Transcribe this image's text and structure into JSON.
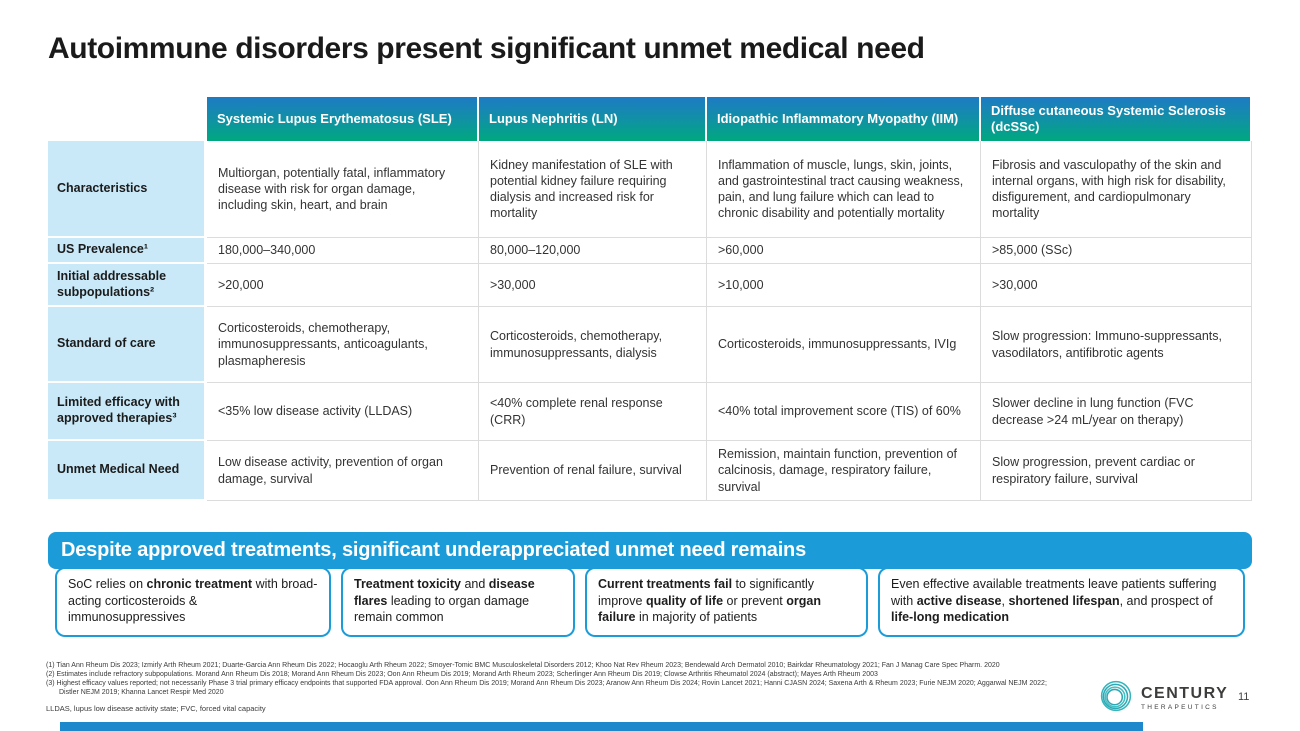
{
  "title": "Autoimmune disorders present significant unmet medical need",
  "table": {
    "columns": [
      "Systemic Lupus Erythematosus (SLE)",
      "Lupus Nephritis (LN)",
      "Idiopathic Inflammatory Myopathy (IIM)",
      "Diffuse cutaneous Systemic Sclerosis (dcSSc)"
    ],
    "rows": [
      {
        "label": "Characteristics",
        "cells": [
          "Multiorgan, potentially fatal, inflammatory disease with risk for organ damage, including skin, heart, and brain",
          "Kidney manifestation of SLE with potential kidney failure requiring dialysis and increased risk for mortality",
          "Inflammation of muscle, lungs, skin, joints, and gastrointestinal tract causing weakness, pain, and lung failure which can lead to chronic disability and potentially mortality",
          "Fibrosis and vasculopathy of the skin and internal organs, with high risk for disability, disfigurement, and cardiopulmonary mortality"
        ]
      },
      {
        "label": "US Prevalence¹",
        "cells": [
          "180,000–340,000",
          "80,000–120,000",
          ">60,000",
          ">85,000 (SSc)"
        ]
      },
      {
        "label": "Initial addressable subpopulations²",
        "cells": [
          ">20,000",
          ">30,000",
          ">10,000",
          ">30,000"
        ]
      },
      {
        "label": "Standard of care",
        "cells": [
          "Corticosteroids, chemotherapy, immunosuppressants, anticoagulants, plasmapheresis",
          "Corticosteroids, chemotherapy, immunosuppressants, dialysis",
          "Corticosteroids, immunosuppressants, IVIg",
          "Slow progression: Immuno-suppressants, vasodilators, antifibrotic agents"
        ]
      },
      {
        "label": "Limited efficacy with approved therapies³",
        "cells": [
          "<35% low disease activity (LLDAS)",
          "<40% complete renal response (CRR)",
          "<40% total improvement score (TIS) of 60%",
          "Slower decline in lung function (FVC decrease >24 mL/year on therapy)"
        ]
      },
      {
        "label": "Unmet Medical Need",
        "cells": [
          "Low disease activity, prevention of organ damage, survival",
          "Prevention of renal failure, survival",
          "Remission, maintain function, prevention of calcinosis, damage, respiratory failure, survival",
          "Slow progression, prevent cardiac or respiratory failure, survival"
        ]
      }
    ]
  },
  "banner": "Despite approved treatments, significant underappreciated unmet need remains",
  "callouts": [
    {
      "segments": [
        {
          "t": "SoC relies on ",
          "b": false
        },
        {
          "t": "chronic treatment",
          "b": true
        },
        {
          "t": " with broad-acting corticosteroids & immunosuppressives",
          "b": false
        }
      ]
    },
    {
      "segments": [
        {
          "t": "Treatment toxicity",
          "b": true
        },
        {
          "t": " and ",
          "b": false
        },
        {
          "t": "disease flares",
          "b": true
        },
        {
          "t": " leading to organ damage remain common",
          "b": false
        }
      ]
    },
    {
      "segments": [
        {
          "t": "Current treatments fail",
          "b": true
        },
        {
          "t": " to significantly improve ",
          "b": false
        },
        {
          "t": "quality of life",
          "b": true
        },
        {
          "t": " or prevent ",
          "b": false
        },
        {
          "t": "organ failure",
          "b": true
        },
        {
          "t": " in majority of patients",
          "b": false
        }
      ]
    },
    {
      "segments": [
        {
          "t": "Even effective available treatments leave patients suffering with ",
          "b": false
        },
        {
          "t": "active disease",
          "b": true
        },
        {
          "t": ", ",
          "b": false
        },
        {
          "t": "shortened lifespan",
          "b": true
        },
        {
          "t": ", and prospect of ",
          "b": false
        },
        {
          "t": "life-long medication",
          "b": true
        }
      ]
    }
  ],
  "footnotes": {
    "refs": [
      "(1) Tian Ann Rheum Dis 2023; Izmirly Arth Rheum 2021; Duarte-Garcia Ann Rheum Dis 2022; Hocaoglu Arth Rheum 2022; Smoyer-Tomic BMC Musculoskeletal Disorders 2012; Khoo Nat Rev Rheum 2023; Bendewald Arch Dermatol 2010; Bairkdar Rheumatology 2021; Fan J Manag Care Spec Pharm. 2020",
      "(2) Estimates include refractory subpopulations. Morand Ann Rheum Dis 2018; Morand Ann Rheum Dis 2023; Oon Ann Rheum Dis 2019; Morand Arth Rheum 2023; Scherlinger Ann Rheum Dis 2019; Clowse Arthritis Rheumatol 2024 (abstract); Mayes Arth Rheum 2003",
      "(3) Highest efficacy values reported; not necessarily Phase 3 trial primary efficacy endpoints that supported FDA approval. Oon Ann Rheum Dis 2019; Morand Ann Rheum Dis 2023; Aranow Ann Rheum Dis 2024; Rovin Lancet 2021; Hanni CJASN 2024; Saxena Arth & Rheum 2023; Furie NEJM 2020; Aggarwal NEJM 2022;",
      "Distler NEJM 2019; Khanna Lancet Respir Med 2020"
    ],
    "abbreviations": "LLDAS, lupus low disease activity state; FVC, forced vital capacity"
  },
  "footer": {
    "logo_name": "CENTURY",
    "logo_sub": "THERAPEUTICS",
    "page_number": "11"
  },
  "colors": {
    "header_gradient_top": "#1e7ac4",
    "header_gradient_bottom": "#00a87e",
    "row_label_bg": "#c9e9f8",
    "accent_blue": "#1b9cd8",
    "bottom_bar_blue": "#1d88cb",
    "logo_teal": "#35b5bc"
  }
}
